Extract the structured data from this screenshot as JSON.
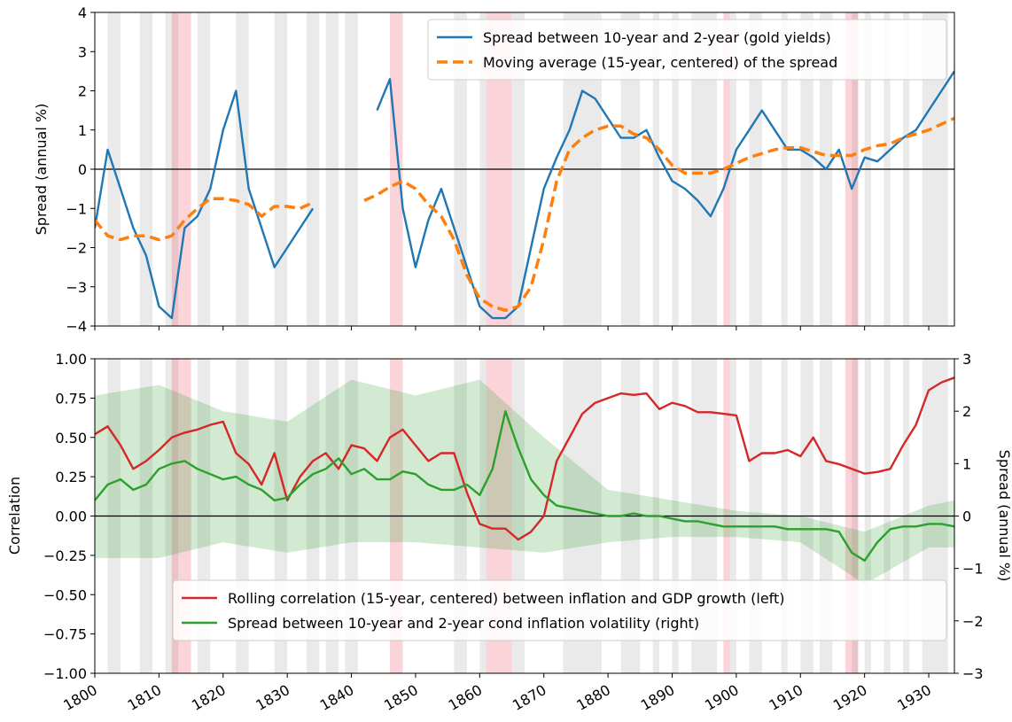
{
  "periods": {
    "gray": [
      [
        1802,
        1804
      ],
      [
        1807,
        1809
      ],
      [
        1811,
        1813
      ],
      [
        1816,
        1818
      ],
      [
        1822,
        1824
      ],
      [
        1828,
        1830
      ],
      [
        1833,
        1835
      ],
      [
        1836,
        1838
      ],
      [
        1839,
        1841
      ],
      [
        1856,
        1858
      ],
      [
        1860,
        1861
      ],
      [
        1865,
        1867
      ],
      [
        1873,
        1879
      ],
      [
        1882,
        1885
      ],
      [
        1887,
        1888
      ],
      [
        1890,
        1891
      ],
      [
        1893,
        1897
      ],
      [
        1899,
        1900
      ],
      [
        1902,
        1904
      ],
      [
        1907,
        1908
      ],
      [
        1910,
        1912
      ],
      [
        1913,
        1915
      ],
      [
        1918,
        1919
      ],
      [
        1920,
        1921
      ],
      [
        1923,
        1924
      ],
      [
        1926,
        1927
      ],
      [
        1929,
        1933
      ]
    ],
    "red": [
      [
        1812,
        1815
      ],
      [
        1846,
        1848
      ],
      [
        1861,
        1865
      ],
      [
        1898,
        1899
      ],
      [
        1917,
        1919
      ]
    ]
  },
  "chart_data": [
    {
      "type": "line",
      "ylabel": "Spread (annual %)",
      "x": [
        1800,
        1802,
        1804,
        1806,
        1808,
        1810,
        1812,
        1814,
        1816,
        1818,
        1820,
        1822,
        1824,
        1826,
        1828,
        1830,
        1832,
        1834,
        1836,
        1838,
        1840,
        1842,
        1844,
        1846,
        1848,
        1850,
        1852,
        1854,
        1856,
        1858,
        1860,
        1862,
        1864,
        1866,
        1868,
        1870,
        1872,
        1874,
        1876,
        1878,
        1880,
        1882,
        1884,
        1886,
        1888,
        1890,
        1892,
        1894,
        1896,
        1898,
        1900,
        1902,
        1904,
        1906,
        1908,
        1910,
        1912,
        1914,
        1916,
        1918,
        1920,
        1922,
        1924,
        1926,
        1928,
        1930,
        1932,
        1934
      ],
      "xlim": [
        1800,
        1934
      ],
      "ylim": [
        -4,
        4
      ],
      "yticks": [
        {
          "value": -4,
          "label": "−4"
        },
        {
          "value": -3,
          "label": "−3"
        },
        {
          "value": -2,
          "label": "−2"
        },
        {
          "value": -1,
          "label": "−1"
        },
        0,
        1,
        2,
        3,
        4
      ],
      "legend": "upper right",
      "series": [
        {
          "name": "Spread between 10-year and 2-year (gold yields)",
          "color": "#1f77b4",
          "style": "solid",
          "values": [
            -1.5,
            0.5,
            -0.5,
            -1.5,
            -2.2,
            -3.5,
            -3.8,
            -1.5,
            -1.2,
            -0.5,
            1.0,
            2.0,
            -0.5,
            -1.5,
            -2.5,
            -2.0,
            -1.5,
            -1.0,
            null,
            null,
            null,
            null,
            1.5,
            2.3,
            -1.0,
            -2.5,
            -1.3,
            -0.5,
            -1.5,
            -2.5,
            -3.5,
            -3.8,
            -3.8,
            -3.5,
            -2.0,
            -0.5,
            0.3,
            1.0,
            2.0,
            1.8,
            1.3,
            0.8,
            0.8,
            1.0,
            0.3,
            -0.3,
            -0.5,
            -0.8,
            -1.2,
            -0.5,
            0.5,
            1.0,
            1.5,
            1.0,
            0.5,
            0.5,
            0.3,
            0.0,
            0.5,
            -0.5,
            0.3,
            0.2,
            0.5,
            0.8,
            1.0,
            1.5,
            2.0,
            2.5
          ]
        },
        {
          "name": "Moving average (15-year, centered) of the spread",
          "color": "#ff7f0e",
          "style": "dashed",
          "values": [
            -1.3,
            -1.7,
            -1.8,
            -1.7,
            -1.7,
            -1.8,
            -1.7,
            -1.3,
            -1.0,
            -0.75,
            -0.75,
            -0.8,
            -0.9,
            -1.2,
            -0.95,
            -0.95,
            -1.0,
            -0.85,
            null,
            null,
            null,
            -0.8,
            -0.65,
            -0.45,
            -0.3,
            -0.5,
            -0.9,
            -1.2,
            -1.8,
            -2.7,
            -3.3,
            -3.5,
            -3.6,
            -3.5,
            -3.0,
            -1.8,
            -0.3,
            0.5,
            0.8,
            1.0,
            1.1,
            1.1,
            0.9,
            0.8,
            0.5,
            0.1,
            -0.1,
            -0.1,
            -0.1,
            0.0,
            0.15,
            0.3,
            0.4,
            0.5,
            0.55,
            0.55,
            0.45,
            0.35,
            0.35,
            0.35,
            0.5,
            0.6,
            0.65,
            0.8,
            0.9,
            1.0,
            1.15,
            1.3
          ]
        }
      ]
    },
    {
      "type": "line",
      "ylabel": "Correlation",
      "y2label": "Spread (annual %)",
      "x": [
        1800,
        1802,
        1804,
        1806,
        1808,
        1810,
        1812,
        1814,
        1816,
        1818,
        1820,
        1822,
        1824,
        1826,
        1828,
        1830,
        1832,
        1834,
        1836,
        1838,
        1840,
        1842,
        1844,
        1846,
        1848,
        1850,
        1852,
        1854,
        1856,
        1858,
        1860,
        1862,
        1864,
        1866,
        1868,
        1870,
        1872,
        1874,
        1876,
        1878,
        1880,
        1882,
        1884,
        1886,
        1888,
        1890,
        1892,
        1894,
        1896,
        1898,
        1900,
        1902,
        1904,
        1906,
        1908,
        1910,
        1912,
        1914,
        1916,
        1918,
        1920,
        1922,
        1924,
        1926,
        1928,
        1930,
        1932,
        1934
      ],
      "xlim": [
        1800,
        1934
      ],
      "xticks": [
        1800,
        1810,
        1820,
        1830,
        1840,
        1850,
        1860,
        1870,
        1880,
        1890,
        1900,
        1910,
        1920,
        1930
      ],
      "ylim": [
        -1,
        1
      ],
      "yticks": [
        {
          "value": -1,
          "label": "−1.00"
        },
        {
          "value": -0.75,
          "label": "−0.75"
        },
        {
          "value": -0.5,
          "label": "−0.50"
        },
        {
          "value": -0.25,
          "label": "−0.25"
        },
        {
          "value": 0,
          "label": "0.00"
        },
        {
          "value": 0.25,
          "label": "0.25"
        },
        {
          "value": 0.5,
          "label": "0.50"
        },
        {
          "value": 0.75,
          "label": "0.75"
        },
        {
          "value": 1,
          "label": "1.00"
        }
      ],
      "y2lim": [
        -3,
        3
      ],
      "y2ticks": [
        {
          "value": -3,
          "label": "−3"
        },
        {
          "value": -2,
          "label": "−2"
        },
        {
          "value": -1,
          "label": "−1"
        },
        0,
        1,
        2,
        3
      ],
      "legend": "lower right",
      "series": [
        {
          "name": "Rolling correlation (15-year, centered) between inflation and GDP growth (left)",
          "color": "#d62728",
          "style": "solid",
          "axis": "y",
          "values": [
            0.52,
            0.57,
            0.45,
            0.3,
            0.35,
            0.42,
            0.5,
            0.53,
            0.55,
            0.58,
            0.6,
            0.4,
            0.33,
            0.2,
            0.4,
            0.1,
            0.25,
            0.35,
            0.4,
            0.3,
            0.45,
            0.43,
            0.35,
            0.5,
            0.55,
            0.45,
            0.35,
            0.4,
            0.4,
            0.15,
            -0.05,
            -0.08,
            -0.08,
            -0.15,
            -0.1,
            0.0,
            0.35,
            0.5,
            0.65,
            0.72,
            0.75,
            0.78,
            0.77,
            0.78,
            0.68,
            0.72,
            0.7,
            0.66,
            0.66,
            0.65,
            0.64,
            0.35,
            0.4,
            0.4,
            0.42,
            0.38,
            0.5,
            0.35,
            0.33,
            0.3,
            0.27,
            0.28,
            0.3,
            0.45,
            0.58,
            0.8,
            0.85,
            0.88
          ]
        },
        {
          "name": "Spread between 10-year and 2-year cond inflation volatility (right)",
          "color": "#2ca02c",
          "style": "solid",
          "axis": "y2",
          "values": [
            0.3,
            0.6,
            0.7,
            0.5,
            0.6,
            0.9,
            1.0,
            1.05,
            0.9,
            0.8,
            0.7,
            0.75,
            0.6,
            0.5,
            0.3,
            0.35,
            0.6,
            0.8,
            0.9,
            1.1,
            0.8,
            0.9,
            0.7,
            0.7,
            0.85,
            0.8,
            0.6,
            0.5,
            0.5,
            0.6,
            0.4,
            0.9,
            2.0,
            1.3,
            0.7,
            0.4,
            0.2,
            0.15,
            0.1,
            0.05,
            0.0,
            0.0,
            0.05,
            0.0,
            0.0,
            -0.05,
            -0.1,
            -0.1,
            -0.15,
            -0.2,
            -0.2,
            -0.2,
            -0.2,
            -0.2,
            -0.25,
            -0.25,
            -0.25,
            -0.25,
            -0.3,
            -0.7,
            -0.85,
            -0.5,
            -0.25,
            -0.2,
            -0.2,
            -0.15,
            -0.15,
            -0.2
          ],
          "band": {
            "x": [
              1800,
              1810,
              1820,
              1830,
              1840,
              1850,
              1860,
              1870,
              1880,
              1890,
              1900,
              1910,
              1920,
              1930,
              1934
            ],
            "upper": [
              2.3,
              2.5,
              2.0,
              1.8,
              2.6,
              2.3,
              2.6,
              1.5,
              0.5,
              0.3,
              0.1,
              0.0,
              -0.3,
              0.2,
              0.3
            ],
            "lower": [
              -0.8,
              -0.8,
              -0.5,
              -0.7,
              -0.5,
              -0.5,
              -0.6,
              -0.7,
              -0.5,
              -0.4,
              -0.4,
              -0.5,
              -1.3,
              -0.6,
              -0.6
            ]
          }
        }
      ]
    }
  ]
}
